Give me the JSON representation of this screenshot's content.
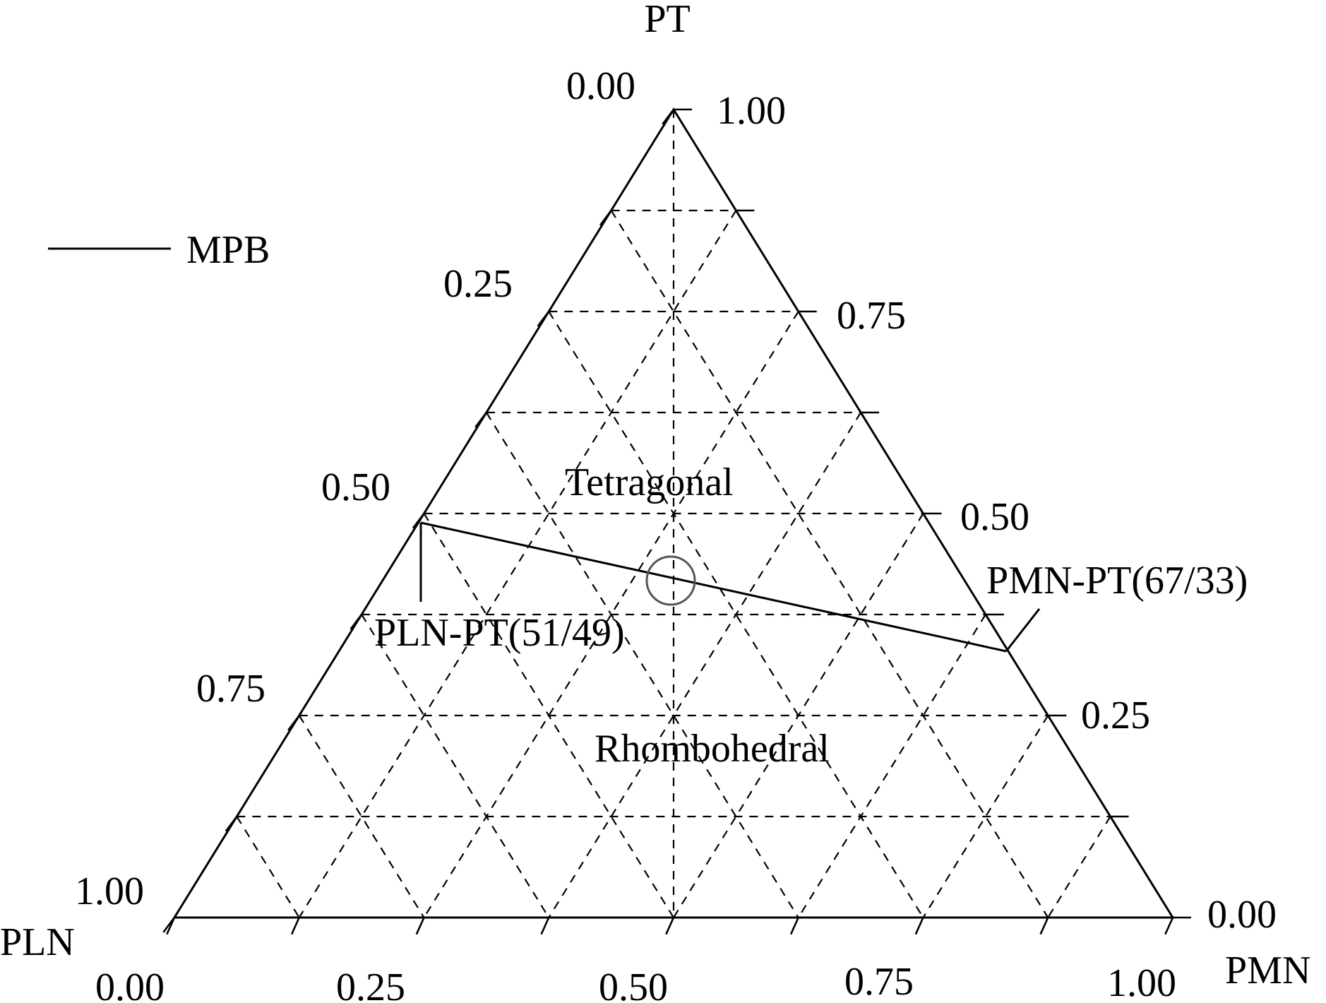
{
  "vertices": {
    "top": "PT",
    "left": "PLN",
    "right": "PMN"
  },
  "legend": {
    "line_label": "MPB"
  },
  "regions": {
    "upper": "Tetragonal",
    "lower": "Rhombohedral"
  },
  "axes": {
    "bottom": {
      "labels": [
        "0.00",
        "0.25",
        "0.50",
        "0.75",
        "1.00"
      ]
    },
    "left": {
      "labels": [
        "1.00",
        "0.75",
        "0.50",
        "0.25",
        "0.00"
      ]
    },
    "right": {
      "labels": [
        "0.00",
        "0.25",
        "0.50",
        "0.75",
        "1.00"
      ]
    }
  },
  "mpb_points": {
    "left": {
      "label": "PLN-PT(51/49)",
      "PT": 0.49,
      "PLN": 0.51,
      "PMN": 0.0
    },
    "right": {
      "label": "PMN-PT(67/33)",
      "PT": 0.33,
      "PLN": 0.0,
      "PMN": 0.67
    }
  },
  "marker": {
    "shape": "circle",
    "color": "#555555"
  }
}
